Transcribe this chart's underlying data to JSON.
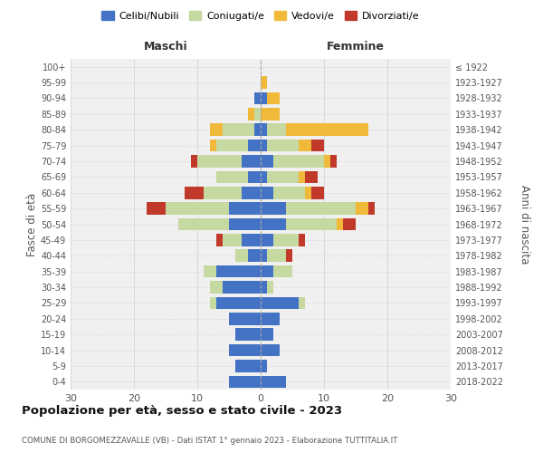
{
  "age_groups": [
    "0-4",
    "5-9",
    "10-14",
    "15-19",
    "20-24",
    "25-29",
    "30-34",
    "35-39",
    "40-44",
    "45-49",
    "50-54",
    "55-59",
    "60-64",
    "65-69",
    "70-74",
    "75-79",
    "80-84",
    "85-89",
    "90-94",
    "95-99",
    "100+"
  ],
  "birth_years": [
    "2018-2022",
    "2013-2017",
    "2008-2012",
    "2003-2007",
    "1998-2002",
    "1993-1997",
    "1988-1992",
    "1983-1987",
    "1978-1982",
    "1973-1977",
    "1968-1972",
    "1963-1967",
    "1958-1962",
    "1953-1957",
    "1948-1952",
    "1943-1947",
    "1938-1942",
    "1933-1937",
    "1928-1932",
    "1923-1927",
    "≤ 1922"
  ],
  "maschi": {
    "celibi": [
      5,
      4,
      5,
      4,
      5,
      7,
      6,
      7,
      2,
      3,
      5,
      5,
      3,
      2,
      3,
      2,
      1,
      0,
      1,
      0,
      0
    ],
    "coniugati": [
      0,
      0,
      0,
      0,
      0,
      1,
      2,
      2,
      2,
      3,
      8,
      10,
      6,
      5,
      7,
      5,
      5,
      1,
      0,
      0,
      0
    ],
    "vedovi": [
      0,
      0,
      0,
      0,
      0,
      0,
      0,
      0,
      0,
      0,
      0,
      0,
      0,
      0,
      0,
      1,
      2,
      1,
      0,
      0,
      0
    ],
    "divorziati": [
      0,
      0,
      0,
      0,
      0,
      0,
      0,
      0,
      0,
      1,
      0,
      3,
      3,
      0,
      1,
      0,
      0,
      0,
      0,
      0,
      0
    ]
  },
  "femmine": {
    "nubili": [
      4,
      1,
      3,
      2,
      3,
      6,
      1,
      2,
      1,
      2,
      4,
      4,
      2,
      1,
      2,
      1,
      1,
      0,
      1,
      0,
      0
    ],
    "coniugate": [
      0,
      0,
      0,
      0,
      0,
      1,
      1,
      3,
      3,
      4,
      8,
      11,
      5,
      5,
      8,
      5,
      3,
      0,
      0,
      0,
      0
    ],
    "vedove": [
      0,
      0,
      0,
      0,
      0,
      0,
      0,
      0,
      0,
      0,
      1,
      2,
      1,
      1,
      1,
      2,
      13,
      3,
      2,
      1,
      0
    ],
    "divorziate": [
      0,
      0,
      0,
      0,
      0,
      0,
      0,
      0,
      1,
      1,
      2,
      1,
      2,
      2,
      1,
      2,
      0,
      0,
      0,
      0,
      0
    ]
  },
  "colors": {
    "celibi": "#4472c4",
    "coniugati": "#c5d9a0",
    "vedovi": "#f0b93a",
    "divorziati": "#c0392b"
  },
  "xlim": 30,
  "title": "Popolazione per età, sesso e stato civile - 2023",
  "subtitle": "COMUNE DI BORGOMEZZAVALLE (VB) - Dati ISTAT 1° gennaio 2023 - Elaborazione TUTTITALIA.IT",
  "ylabel_left": "Fasce di età",
  "ylabel_right": "Anni di nascita",
  "xlabel_maschi": "Maschi",
  "xlabel_femmine": "Femmine",
  "legend_labels": [
    "Celibi/Nubili",
    "Coniugati/e",
    "Vedovi/e",
    "Divorziati/e"
  ],
  "bg_color": "#ffffff",
  "plot_bg": "#f0f0f0",
  "grid_color": "#d0d0d0"
}
